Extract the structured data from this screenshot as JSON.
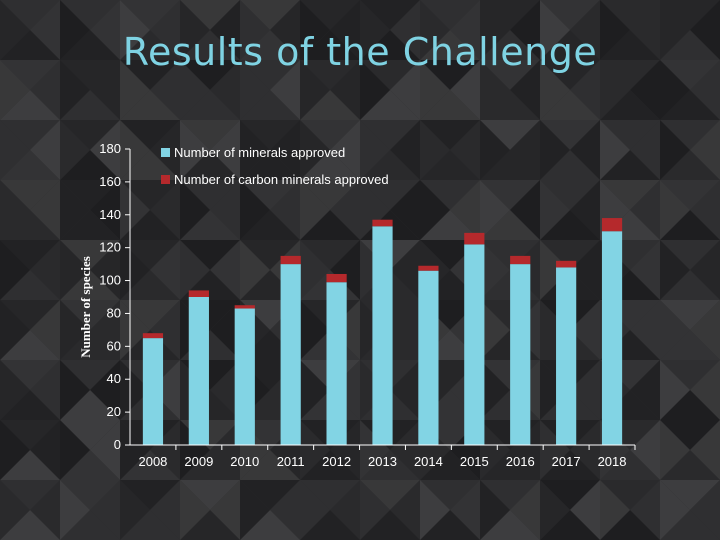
{
  "title": "Results of the Challenge",
  "colors": {
    "background": "#2b2b2d",
    "title": "#7fd3e3",
    "minerals": "#82d4e4",
    "carbon": "#b5292c",
    "axis": "#ffffff"
  },
  "chart_data": {
    "type": "bar",
    "stacked": true,
    "categories": [
      "2008",
      "2009",
      "2010",
      "2011",
      "2012",
      "2013",
      "2014",
      "2015",
      "2016",
      "2017",
      "2018"
    ],
    "series": [
      {
        "name": "Number of minerals approved",
        "values": [
          65,
          90,
          83,
          110,
          99,
          133,
          106,
          122,
          110,
          108,
          130
        ]
      },
      {
        "name": "Number of carbon minerals approved",
        "values": [
          3,
          4,
          2,
          5,
          5,
          4,
          3,
          7,
          5,
          4,
          8
        ]
      }
    ],
    "ylabel": "Number of species",
    "xlabel": "",
    "ylim": [
      0,
      180
    ],
    "yticks": [
      0,
      20,
      40,
      60,
      80,
      100,
      120,
      140,
      160,
      180
    ],
    "grid": false,
    "legend": "top-left inside plot"
  }
}
